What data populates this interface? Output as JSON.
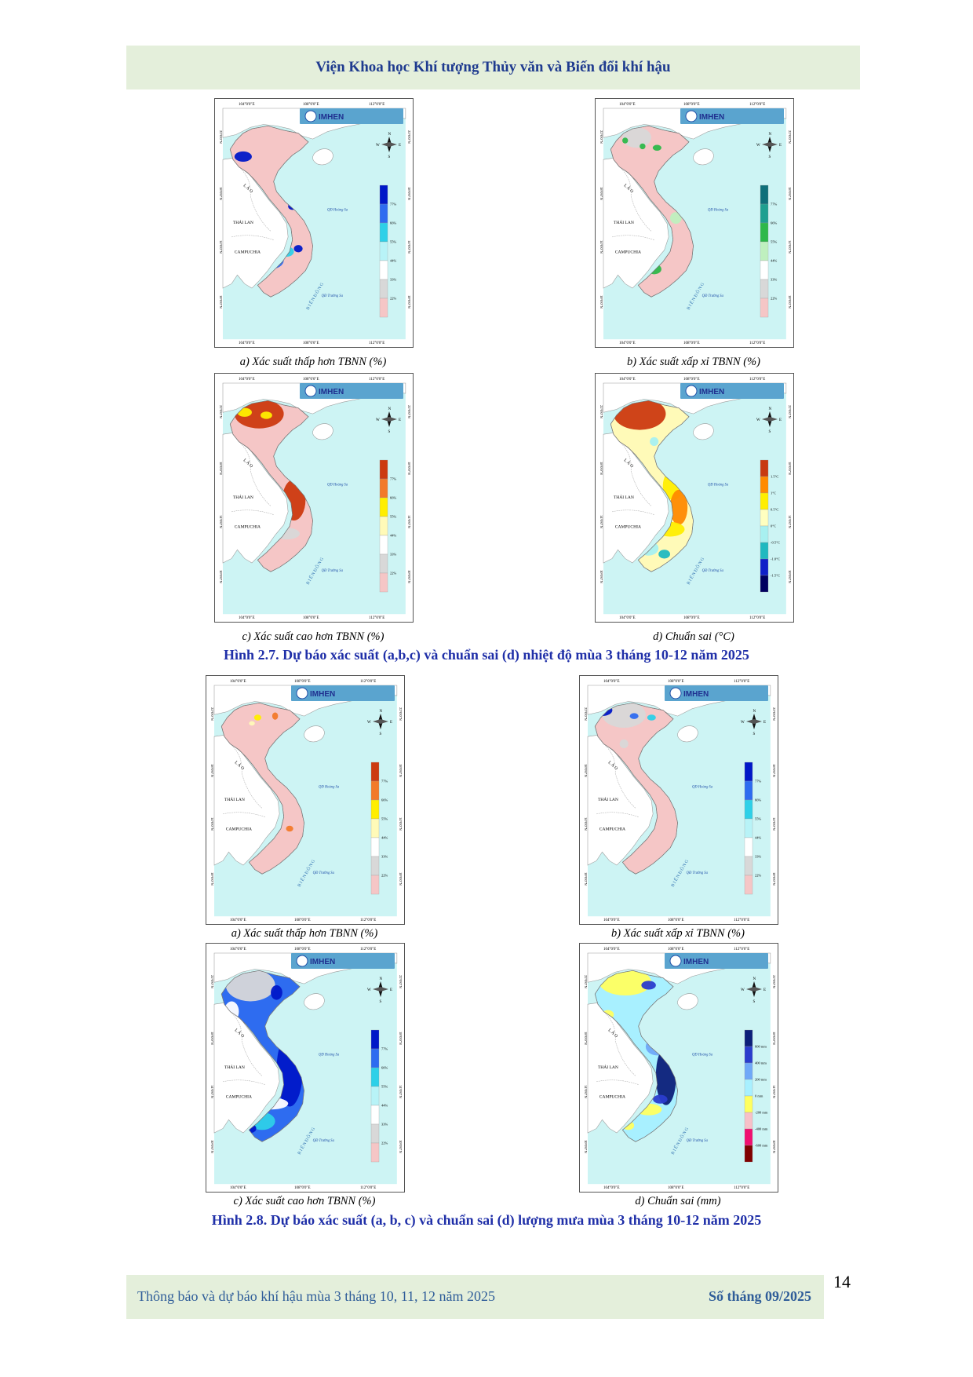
{
  "header": {
    "title": "Viện Khoa học Khí tượng Thủy văn và Biến đổi khí hậu"
  },
  "map_template": {
    "logo": "IMHEN",
    "lon_labels": [
      "104°0'0\"E",
      "108°0'0\"E",
      "112°0'0\"E"
    ],
    "lat_labels": [
      "22°0'0\"N",
      "18°0'0\"N",
      "14°0'0\"N",
      "10°0'0\"N"
    ],
    "places": {
      "laos": "L À O",
      "thailand": "THÁI LAN",
      "cambodia": "CAMPUCHIA",
      "east_sea": "B I Ể N   Đ Ô N G",
      "hoang_sa": "QĐ Hoàng Sa",
      "truong_sa": "QĐ Trường Sa"
    },
    "compass": [
      "N",
      "E",
      "S",
      "W"
    ]
  },
  "legends": {
    "prob": [
      "77%",
      "66%",
      "55%",
      "44%",
      "33%",
      "22%"
    ],
    "temp": [
      "1.5°C",
      "1°C",
      "0.5°C",
      "0°C",
      "-0.5°C",
      "-1.0°C",
      "-1.5°C"
    ],
    "rain": [
      "600 mm",
      "400 mm",
      "200 mm",
      "0 mm",
      "-200 mm",
      "-400 mm",
      "-600 mm"
    ]
  },
  "figure_2_7": {
    "title": "Hình 2.7. Dự báo xác suất (a,b,c) và chuẩn sai (d) nhiệt độ mùa 3 tháng 10-12 năm 2025",
    "captions": [
      "a) Xác suất thấp hơn TBNN (%)",
      "b) Xác suất xấp xỉ TBNN (%)",
      "c) Xác suất cao hơn TBNN (%)",
      "d) Chuẩn sai (°C)"
    ]
  },
  "figure_2_8": {
    "title": "Hình 2.8. Dự báo xác suất (a, b, c) và chuẩn sai (d) lượng mưa mùa 3 tháng 10-12 năm 2025",
    "captions": [
      "a) Xác suất thấp hơn TBNN (%)",
      "b) Xác suất xấp xỉ TBNN (%)",
      "c) Xác suất cao hơn TBNN (%)",
      "d) Chuẩn sai (mm)"
    ]
  },
  "footer": {
    "left": "Thông báo và dự báo khí hậu mùa 3 tháng 10, 11, 12 năm 2025",
    "right": "Số tháng 09/2025",
    "page": "14"
  },
  "colors": {
    "sea": "#cdf4f4",
    "land": "#ffffff",
    "vn_base": "#f5c6c6",
    "prob_warm": [
      "#cc3a10",
      "#f27a2a",
      "#ffee00",
      "#fffab8",
      "#ffffff",
      "#d8d8d8",
      "#f5c6c6"
    ],
    "prob_blue": [
      "#0018c8",
      "#2e6cf0",
      "#2ed0e8",
      "#b8f3f7",
      "#ffffff",
      "#d8d8d8",
      "#f5c6c6"
    ],
    "prob_green": [
      "#0f6f7a",
      "#1f9f90",
      "#2eb84a",
      "#bff0bf",
      "#ffffff",
      "#d8d8d8",
      "#f5c6c6"
    ],
    "temp": [
      "#c83a10",
      "#ff8a00",
      "#ffee00",
      "#ffffc0",
      "#a8f0f0",
      "#20b8c0",
      "#1020c8",
      "#000060"
    ],
    "rain": [
      "#0c1f7a",
      "#2a3ccd",
      "#6fa8f8",
      "#a8f0ff",
      "#ffff60",
      "#f7c0c8",
      "#f01070",
      "#800000"
    ]
  }
}
